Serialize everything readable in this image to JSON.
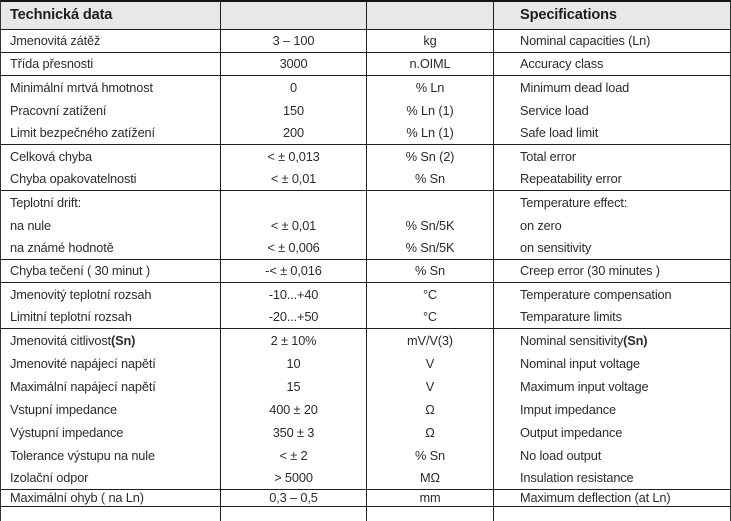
{
  "header": {
    "left": "Technická data",
    "right": "Specifications"
  },
  "colors": {
    "border": "#1e1e1e",
    "header_background": "#e8e8ea",
    "text": "#2c2c30"
  },
  "rows": [
    {
      "label": "Jmenovitá zátěž",
      "value": "3 – 100",
      "unit": "kg",
      "spec": "Nominal capacities (Ln)",
      "sep": true
    },
    {
      "label": "Třída přesnosti",
      "value": "3000",
      "unit": "n.OIML",
      "spec": "Accuracy class",
      "sep": true
    },
    {
      "label": "Minimální mrtvá hmotnost",
      "value": "0",
      "unit": "% Ln",
      "spec": "Minimum dead load",
      "sep": false
    },
    {
      "label": "Pracovní zatížení",
      "value": "150",
      "unit": "% Ln (1)",
      "spec": "Service load",
      "sep": false
    },
    {
      "label": "Limit bezpečného zatížení",
      "value": "200",
      "unit": "% Ln (1)",
      "spec": "Safe load limit",
      "sep": true
    },
    {
      "label": "Celková chyba",
      "value": "< ± 0,013",
      "unit": "% Sn (2)",
      "spec": "Total error",
      "sep": false
    },
    {
      "label": "Chyba opakovatelnosti",
      "value": "< ± 0,01",
      "unit": "% Sn",
      "spec": "Repeatability error",
      "sep": true
    },
    {
      "label": "Teplotní drift:",
      "value": "",
      "unit": "",
      "spec": "Temperature effect:",
      "sep": false
    },
    {
      "label": "na nule",
      "value": "< ± 0,01",
      "unit": "% Sn/5K",
      "spec": "on zero",
      "sep": false
    },
    {
      "label": "na známé hodnotě",
      "value": "< ± 0,006",
      "unit": "% Sn/5K",
      "spec": "on sensitivity",
      "sep": true
    },
    {
      "label": "Chyba tečení ( 30 minut )",
      "value": "-< ± 0,016",
      "unit": "% Sn",
      "spec": "Creep error (30 minutes )",
      "sep": true
    },
    {
      "label": "Jmenovitý teplotní rozsah",
      "value": "-10...+40",
      "unit": "°C",
      "spec": "Temperature compensation",
      "sep": false
    },
    {
      "label": "Limitní teplotní rozsah",
      "value": "-20...+50",
      "unit": "°C",
      "spec": "Temparature limits",
      "sep": true
    },
    {
      "label": "Jmenovitá citlivost ",
      "label_bold": "(Sn)",
      "value": "2 ± 10%",
      "unit": "mV/V(3)",
      "spec": "Nominal sensitivity ",
      "spec_bold": "(Sn)",
      "sep": false
    },
    {
      "label": "Jmenovité napájecí napětí",
      "value": "10",
      "unit": "V",
      "spec": "Nominal input voltage",
      "sep": false
    },
    {
      "label": "Maximální napájecí napětí",
      "value": "15",
      "unit": "V",
      "spec": "Maximum input voltage",
      "sep": false
    },
    {
      "label": "Vstupní impedance",
      "value": "400 ± 20",
      "unit": "Ω",
      "spec": "Imput impedance",
      "sep": false
    },
    {
      "label": "Výstupní impedance",
      "value": "350 ± 3",
      "unit": "Ω",
      "spec": "Output impedance",
      "sep": false
    },
    {
      "label": "Tolerance výstupu na nule",
      "value": "< ± 2",
      "unit": "% Sn",
      "spec": "No load output",
      "sep": false
    },
    {
      "label": "Izolační odpor",
      "value": "> 5000",
      "unit": "MΩ",
      "spec": "Insulation resistance",
      "sep": true
    },
    {
      "label": "Maximální ohyb ( na Ln)",
      "value": "0,3 – 0,5",
      "unit": "mm",
      "spec": "Maximum deflection (at Ln)",
      "sep": true
    }
  ]
}
